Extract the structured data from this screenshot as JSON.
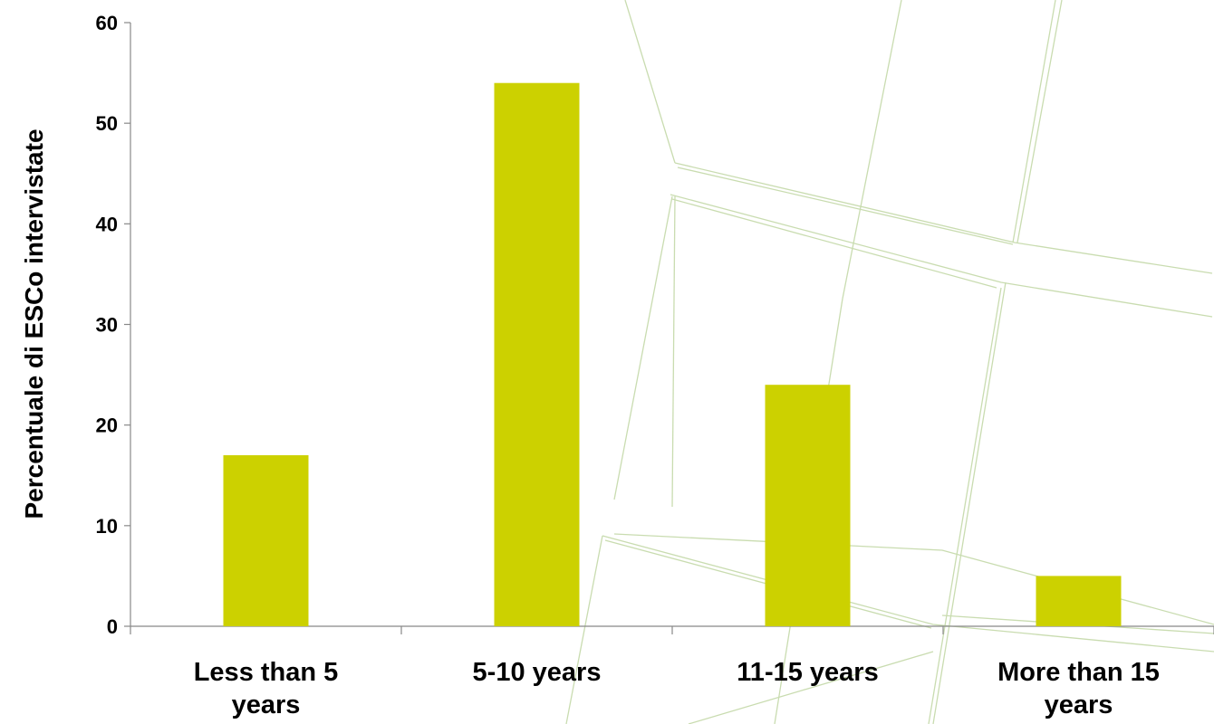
{
  "chart_data": {
    "type": "bar",
    "categories": [
      [
        "Less than 5",
        "years"
      ],
      [
        "5-10 years"
      ],
      [
        "11-15 years"
      ],
      [
        "More than 15",
        "years"
      ]
    ],
    "values": [
      17,
      54,
      24,
      5
    ],
    "ylabel": "Percentuale di ESCo intervistate",
    "ylim": [
      0,
      60
    ],
    "yticks": [
      0,
      10,
      20,
      30,
      40,
      50,
      60
    ],
    "bar_color": "#ccd100",
    "grid": false,
    "legend": "none"
  }
}
